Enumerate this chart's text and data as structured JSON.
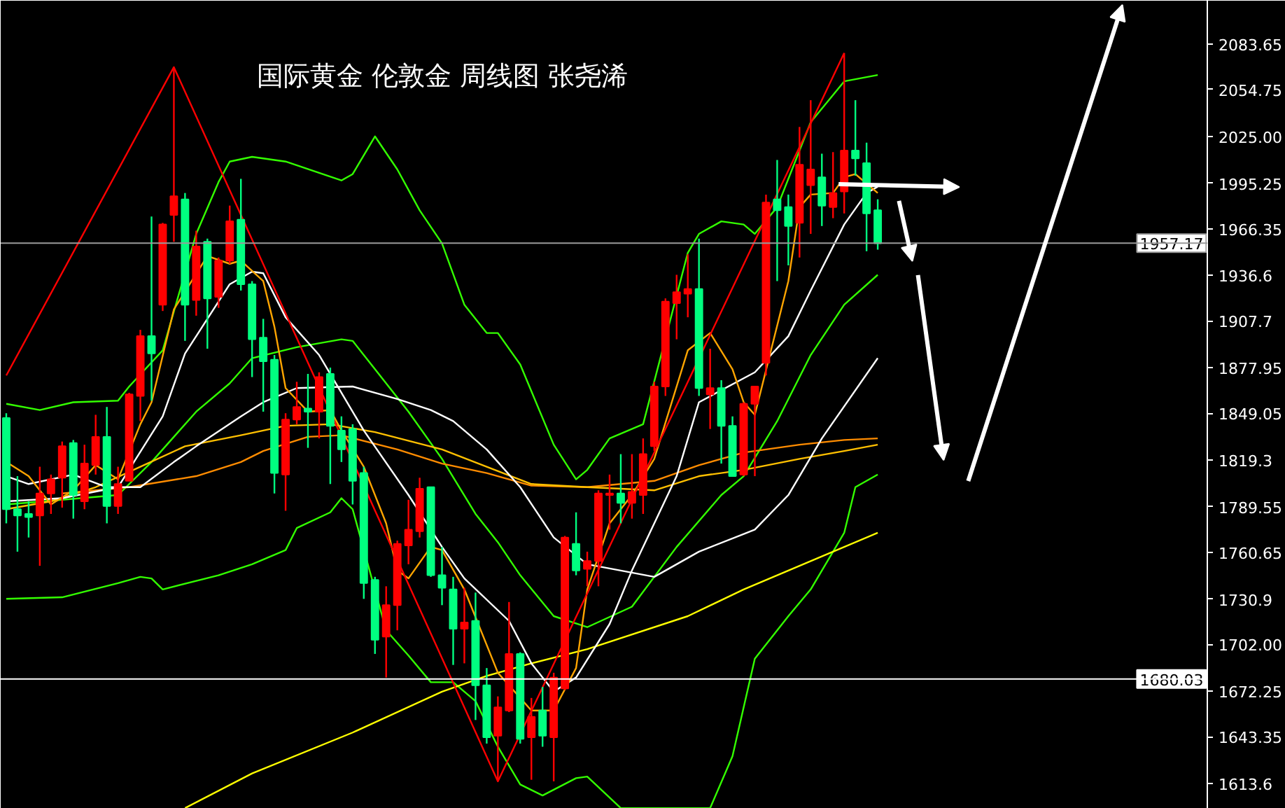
{
  "chart_data": {
    "type": "candlestick",
    "title": "国际黄金 伦敦金 周线图 张尧浠",
    "categories": [
      null,
      null,
      null,
      null,
      null,
      null,
      null,
      null,
      null,
      null,
      null,
      null,
      null,
      null,
      null,
      null,
      null,
      null,
      null,
      null,
      null,
      null,
      null,
      null,
      null,
      null,
      null,
      null,
      null,
      null,
      null,
      null,
      null,
      null,
      null,
      null,
      null,
      null,
      null,
      null,
      null,
      null,
      null,
      null,
      null,
      null,
      null,
      null,
      null,
      null,
      null,
      null,
      null,
      null,
      null,
      null,
      null,
      null,
      null,
      null,
      null,
      null,
      null,
      null,
      null,
      null,
      null,
      null,
      null,
      null,
      null,
      null,
      null,
      null,
      null,
      null,
      null,
      null,
      null,
      null,
      null,
      null,
      null,
      null,
      null,
      null,
      null,
      null,
      null,
      null,
      null,
      null,
      null,
      null,
      null,
      null,
      null,
      null,
      null,
      null,
      null,
      null,
      null,
      null,
      null,
      null,
      null,
      null
    ],
    "ohlc": [
      [
        1846,
        1849,
        1779,
        1788
      ],
      [
        1788,
        1809,
        1761,
        1784
      ],
      [
        1785,
        1793,
        1770,
        1783
      ],
      [
        1784,
        1815,
        1752,
        1798
      ],
      [
        1798,
        1810,
        1785,
        1807
      ],
      [
        1808,
        1831,
        1789,
        1828
      ],
      [
        1830,
        1832,
        1782,
        1797
      ],
      [
        1793,
        1829,
        1788,
        1817
      ],
      [
        1816,
        1848,
        1810,
        1834
      ],
      [
        1834,
        1853,
        1779,
        1790
      ],
      [
        1790,
        1815,
        1785,
        1804
      ],
      [
        1806,
        1862,
        1806,
        1861
      ],
      [
        1860,
        1902,
        1844,
        1898
      ],
      [
        1898,
        1974,
        1857,
        1887
      ],
      [
        1918,
        1970,
        1914,
        1969
      ],
      [
        1975,
        2069,
        1958,
        1987
      ],
      [
        1985,
        1989,
        1895,
        1918
      ],
      [
        1921,
        1965,
        1911,
        1955
      ],
      [
        1958,
        1960,
        1890,
        1922
      ],
      [
        1923,
        1948,
        1916,
        1946
      ],
      [
        1946,
        1981,
        1944,
        1971
      ],
      [
        1972,
        1998,
        1927,
        1931
      ],
      [
        1931,
        1933,
        1872,
        1896
      ],
      [
        1897,
        1909,
        1850,
        1882
      ],
      [
        1883,
        1886,
        1798,
        1811
      ],
      [
        1810,
        1849,
        1787,
        1845
      ],
      [
        1845,
        1869,
        1842,
        1853
      ],
      [
        1852,
        1874,
        1827,
        1850
      ],
      [
        1850,
        1875,
        1833,
        1872
      ],
      [
        1874,
        1878,
        1804,
        1841
      ],
      [
        1838,
        1847,
        1818,
        1826
      ],
      [
        1839,
        1842,
        1791,
        1806
      ],
      [
        1811,
        1815,
        1731,
        1741
      ],
      [
        1743,
        1745,
        1696,
        1705
      ],
      [
        1707,
        1739,
        1681,
        1727
      ],
      [
        1727,
        1768,
        1711,
        1766
      ],
      [
        1765,
        1794,
        1753,
        1775
      ],
      [
        1774,
        1808,
        1770,
        1801
      ],
      [
        1802,
        1802,
        1745,
        1746
      ],
      [
        1746,
        1764,
        1727,
        1738
      ],
      [
        1737,
        1745,
        1689,
        1712
      ],
      [
        1712,
        1738,
        1690,
        1716
      ],
      [
        1717,
        1735,
        1654,
        1676
      ],
      [
        1676,
        1687,
        1639,
        1643
      ],
      [
        1644,
        1669,
        1615,
        1662
      ],
      [
        1660,
        1729,
        1659,
        1696
      ],
      [
        1696,
        1697,
        1639,
        1642
      ],
      [
        1643,
        1668,
        1616,
        1656
      ],
      [
        1660,
        1675,
        1637,
        1644
      ],
      [
        1643,
        1684,
        1615,
        1681
      ],
      [
        1674,
        1771,
        1673,
        1770
      ],
      [
        1766,
        1786,
        1746,
        1749
      ],
      [
        1750,
        1761,
        1739,
        1755
      ],
      [
        1755,
        1800,
        1739,
        1798
      ],
      [
        1797,
        1810,
        1775,
        1798
      ],
      [
        1798,
        1823,
        1779,
        1792
      ],
      [
        1792,
        1823,
        1782,
        1799
      ],
      [
        1797,
        1833,
        1785,
        1823
      ],
      [
        1828,
        1869,
        1825,
        1866
      ],
      [
        1866,
        1922,
        1860,
        1920
      ],
      [
        1919,
        1937,
        1896,
        1926
      ],
      [
        1925,
        1950,
        1910,
        1928
      ],
      [
        1928,
        1960,
        1860,
        1865
      ],
      [
        1861,
        1890,
        1839,
        1865
      ],
      [
        1865,
        1870,
        1817,
        1841
      ],
      [
        1841,
        1847,
        1809,
        1809
      ],
      [
        1810,
        1856,
        1809,
        1855
      ],
      [
        1855,
        1866,
        1809,
        1866
      ],
      [
        1881,
        1988,
        1873,
        1983
      ],
      [
        1985,
        2010,
        1933,
        1978
      ],
      [
        1980,
        1988,
        1943,
        1968
      ],
      [
        1970,
        2031,
        1948,
        2007
      ],
      [
        1994,
        2048,
        1963,
        2004
      ],
      [
        1999,
        2014,
        1968,
        1981
      ],
      [
        1980,
        2015,
        1973,
        1989
      ],
      [
        1990,
        2078,
        1976,
        2016
      ],
      [
        2016,
        2048,
        2000,
        2011
      ],
      [
        2008,
        2021,
        1952,
        1976
      ],
      [
        1978,
        1985,
        1953,
        1957
      ],
      null,
      null,
      null,
      null,
      null,
      null,
      null,
      null,
      null,
      null,
      null,
      null,
      null,
      null,
      null,
      null,
      null,
      null,
      null,
      null,
      null,
      null,
      null,
      null,
      null,
      null,
      null,
      null,
      null
    ],
    "colors": [
      "#00ff80",
      "#00ff80",
      "#00ff80",
      "#ff0000",
      "#ff0000",
      "#ff0000",
      "#00ff80",
      "#ff0000",
      "#ff0000",
      "#00ff80",
      "#ff0000",
      "#ff0000",
      "#ff0000",
      "#00ff80",
      "#ff0000",
      "#ff0000",
      "#00ff80",
      "#ff0000",
      "#00ff80",
      "#ff0000",
      "#ff0000",
      "#00ff80",
      "#00ff80",
      "#00ff80",
      "#00ff80",
      "#ff0000",
      "#ff0000",
      "#00ff80",
      "#ff0000",
      "#00ff80",
      "#00ff80",
      "#00ff80",
      "#00ff80",
      "#00ff80",
      "#ff0000",
      "#ff0000",
      "#ff0000",
      "#ff0000",
      "#00ff80",
      "#00ff80",
      "#00ff80",
      "#ff0000",
      "#00ff80",
      "#00ff80",
      "#ff0000",
      "#ff0000",
      "#00ff80",
      "#ff0000",
      "#00ff80",
      "#ff0000",
      "#ff0000",
      "#00ff80",
      "#ff0000",
      "#ff0000",
      "#ff0000",
      "#00ff80",
      "#ff0000",
      "#ff0000",
      "#ff0000",
      "#ff0000",
      "#ff0000",
      "#ff0000",
      "#00ff80",
      "#ff0000",
      "#00ff80",
      "#00ff80",
      "#ff0000",
      "#ff0000",
      "#ff0000",
      "#00ff80",
      "#00ff80",
      "#ff0000",
      "#ff0000",
      "#00ff80",
      "#ff0000",
      "#ff0000",
      "#00ff80",
      "#00ff80",
      "#00ff80",
      null,
      null,
      null,
      null,
      null,
      null,
      null,
      null,
      null,
      null,
      null,
      null,
      null,
      null,
      null,
      null,
      null,
      null,
      null,
      null,
      null,
      null,
      null,
      null,
      null,
      null,
      null,
      null,
      null
    ],
    "series": [
      {
        "type": "line",
        "color": "#33ff00",
        "values": [
          1855,
          null,
          null,
          1851,
          null,
          null,
          1856,
          null,
          null,
          null,
          1857,
          1866,
          null,
          null,
          1889,
          null,
          null,
          1963,
          null,
          1996,
          2009,
          null,
          2012,
          null,
          null,
          2009,
          null,
          null,
          null,
          null,
          1997,
          2001,
          null,
          2025,
          null,
          2004,
          null,
          1978,
          null,
          1957,
          null,
          1918,
          null,
          1900,
          1900,
          null,
          1880,
          null,
          null,
          1829,
          null,
          1807,
          1813,
          null,
          1833,
          null,
          null,
          1842,
          null,
          null,
          null,
          1951,
          1963,
          null,
          1971,
          null,
          1969,
          1963,
          null,
          1980,
          null,
          null,
          2034,
          null,
          null,
          2060,
          null,
          null,
          2064,
          null,
          null,
          null,
          null,
          null,
          null,
          null,
          null,
          null,
          null,
          null,
          null,
          null,
          null,
          null,
          null,
          null,
          null,
          null,
          null,
          null,
          null,
          null,
          null,
          null,
          null,
          null,
          null,
          null
        ]
      },
      {
        "type": "line",
        "color": "#33ff00",
        "values": [
          1791,
          null,
          null,
          null,
          null,
          null,
          null,
          null,
          null,
          null,
          1797,
          null,
          null,
          1818,
          null,
          null,
          null,
          1850,
          null,
          null,
          1868,
          null,
          1884,
          null,
          null,
          null,
          1891,
          null,
          null,
          null,
          1896,
          1895,
          null,
          1877,
          null,
          null,
          1850,
          null,
          null,
          1820,
          null,
          null,
          1785,
          null,
          1767,
          null,
          1746,
          null,
          null,
          1720,
          null,
          null,
          1713,
          null,
          null,
          null,
          1726,
          null,
          null,
          null,
          1764,
          null,
          null,
          null,
          1797,
          null,
          1809,
          null,
          null,
          1844,
          null,
          null,
          1886,
          null,
          null,
          1918,
          null,
          null,
          1937,
          null,
          null,
          null,
          null,
          null,
          null,
          null,
          null,
          null,
          null,
          null,
          null,
          null,
          null,
          null,
          null,
          null,
          null,
          null,
          null,
          null,
          null,
          null,
          null,
          null,
          null,
          null,
          null,
          null
        ]
      },
      {
        "type": "line",
        "color": "#33ff00",
        "values": [
          1731,
          null,
          null,
          null,
          null,
          1732,
          null,
          null,
          null,
          null,
          1741,
          null,
          1745,
          1744,
          1737,
          null,
          null,
          null,
          null,
          1746,
          null,
          null,
          1753,
          null,
          null,
          1762,
          1776,
          null,
          null,
          1786,
          1795,
          1788,
          null,
          null,
          1711,
          null,
          1695,
          null,
          1678,
          null,
          1678,
          null,
          1666,
          null,
          1637,
          null,
          1613,
          null,
          1606,
          null,
          null,
          1617,
          1618,
          null,
          null,
          1598,
          null,
          null,
          null,
          null,
          null,
          null,
          null,
          1598,
          null,
          1631,
          null,
          1693,
          null,
          null,
          1720,
          null,
          1737,
          null,
          null,
          1773,
          1802,
          null,
          1810,
          null,
          null,
          null,
          null,
          null,
          null,
          null,
          null,
          null,
          null,
          null,
          null,
          null,
          null,
          null,
          null,
          null,
          null,
          null,
          null,
          null,
          null,
          null,
          null,
          null,
          null,
          null,
          null,
          null
        ]
      },
      {
        "type": "line",
        "color": "#ffff00",
        "values": [
          null,
          null,
          null,
          null,
          null,
          null,
          null,
          null,
          null,
          null,
          null,
          null,
          null,
          null,
          null,
          null,
          1598,
          null,
          null,
          null,
          null,
          null,
          1620,
          null,
          null,
          null,
          null,
          null,
          null,
          null,
          null,
          1646,
          null,
          null,
          null,
          null,
          null,
          null,
          null,
          1672,
          null,
          null,
          null,
          1682,
          null,
          null,
          null,
          1690,
          null,
          null,
          null,
          null,
          1699,
          null,
          null,
          null,
          null,
          null,
          null,
          null,
          null,
          1720,
          null,
          null,
          null,
          null,
          1737,
          null,
          null,
          null,
          null,
          null,
          null,
          1758,
          null,
          null,
          null,
          null,
          1773,
          null,
          null,
          null,
          null,
          null,
          null,
          null,
          null,
          null,
          null,
          null,
          null,
          null,
          null,
          null,
          null,
          null,
          null,
          null,
          null,
          null,
          null,
          null,
          null,
          null,
          null,
          null,
          null,
          null
        ]
      },
      {
        "type": "line",
        "color": "#ff8c00",
        "values": [
          null,
          null,
          null,
          null,
          null,
          1798,
          null,
          null,
          null,
          null,
          null,
          1802,
          null,
          null,
          null,
          null,
          null,
          1809,
          null,
          null,
          null,
          1818,
          null,
          1825,
          null,
          null,
          null,
          1834,
          null,
          null,
          1835,
          null,
          null,
          null,
          null,
          1826,
          null,
          null,
          null,
          1817,
          null,
          null,
          null,
          1811,
          null,
          null,
          null,
          1803,
          null,
          null,
          null,
          null,
          1802,
          null,
          null,
          null,
          null,
          null,
          1806,
          null,
          null,
          null,
          1816,
          null,
          null,
          null,
          1824,
          null,
          null,
          null,
          null,
          1829,
          null,
          null,
          null,
          1832,
          null,
          null,
          1833,
          null,
          null,
          null,
          null,
          null,
          null,
          null,
          null,
          null,
          null,
          null,
          null,
          null,
          null,
          null,
          null,
          null,
          null,
          null,
          null,
          null,
          null,
          null,
          null,
          null,
          null,
          null,
          null,
          null
        ]
      },
      {
        "type": "line",
        "color": "#ffc000",
        "values": [
          1788,
          null,
          null,
          null,
          1793,
          null,
          null,
          null,
          1802,
          null,
          null,
          null,
          1815,
          null,
          null,
          null,
          1828,
          null,
          null,
          null,
          null,
          1835,
          null,
          null,
          null,
          1841,
          null,
          null,
          null,
          1842,
          null,
          null,
          null,
          1837,
          null,
          null,
          null,
          null,
          null,
          1826,
          null,
          null,
          null,
          1815,
          null,
          null,
          null,
          1804,
          null,
          null,
          null,
          null,
          1802,
          null,
          null,
          null,
          null,
          null,
          1800,
          null,
          null,
          null,
          1809,
          null,
          null,
          null,
          1813,
          null,
          null,
          null,
          null,
          1820,
          null,
          null,
          null,
          1825,
          null,
          null,
          1829,
          null,
          null,
          null,
          null,
          null,
          null,
          null,
          null,
          null,
          null,
          null,
          null,
          null,
          null,
          null,
          null,
          null,
          null,
          null,
          null,
          null,
          null,
          null,
          null,
          null,
          null,
          null,
          null,
          null
        ]
      },
      {
        "type": "line",
        "color": "#ffffff",
        "values": [
          1809,
          null,
          1804,
          null,
          null,
          null,
          1810,
          null,
          null,
          1802,
          null,
          null,
          1802,
          null,
          null,
          1818,
          null,
          1828,
          null,
          null,
          null,
          1847,
          null,
          1856,
          null,
          null,
          1865,
          null,
          null,
          null,
          null,
          1866,
          null,
          null,
          null,
          1858,
          null,
          null,
          1851,
          null,
          1844,
          null,
          null,
          1826,
          null,
          null,
          1802,
          null,
          null,
          1770,
          null,
          null,
          1753,
          null,
          null,
          null,
          null,
          null,
          1745,
          null,
          null,
          null,
          1761,
          null,
          null,
          null,
          null,
          1775,
          null,
          null,
          1797,
          null,
          null,
          1833,
          null,
          null,
          null,
          null,
          1884,
          null,
          null,
          null,
          null,
          null,
          null,
          null,
          null,
          null,
          null,
          null,
          null,
          null,
          null,
          null,
          null,
          null,
          null,
          null,
          null,
          null,
          null,
          null,
          null,
          null,
          null,
          null,
          null,
          null
        ]
      },
      {
        "type": "line",
        "color": "#ffffff",
        "values": [
          1793,
          null,
          null,
          null,
          null,
          1795,
          null,
          null,
          null,
          null,
          1802,
          null,
          null,
          null,
          1847,
          null,
          1887,
          null,
          null,
          null,
          1931,
          null,
          1939,
          1938,
          null,
          1910,
          null,
          null,
          1886,
          null,
          null,
          null,
          1838,
          null,
          null,
          null,
          1797,
          null,
          null,
          1764,
          null,
          1744,
          null,
          null,
          null,
          1717,
          null,
          1690,
          null,
          1672,
          null,
          1681,
          null,
          null,
          1715,
          null,
          1749,
          null,
          null,
          null,
          1809,
          null,
          1856,
          null,
          null,
          null,
          null,
          1875,
          null,
          null,
          1898,
          null,
          1927,
          null,
          null,
          1969,
          null,
          1989,
          1993,
          null,
          null,
          null,
          null,
          null,
          null,
          null,
          null,
          null,
          null,
          null,
          null,
          null,
          null,
          null,
          null,
          null,
          null,
          null,
          null,
          null,
          null,
          null,
          null,
          null,
          null,
          null,
          null,
          null
        ]
      },
      {
        "type": "line",
        "color": "#ffa500",
        "values": [
          1818,
          null,
          1809,
          null,
          1791,
          null,
          1800,
          null,
          1816,
          null,
          1807,
          null,
          1842,
          1856,
          null,
          1915,
          null,
          null,
          1949,
          null,
          1944,
          1946,
          null,
          1933,
          1904,
          1865,
          null,
          1850,
          null,
          1851,
          1838,
          null,
          1815,
          null,
          1779,
          1749,
          1744,
          null,
          1764,
          1762,
          null,
          1737,
          null,
          null,
          1684,
          null,
          null,
          1660,
          null,
          1660,
          null,
          1687,
          1737,
          null,
          1779,
          null,
          1797,
          null,
          1820,
          null,
          null,
          1889,
          null,
          1900,
          null,
          1877,
          1856,
          1848,
          null,
          null,
          1933,
          1980,
          1988,
          null,
          1989,
          1999,
          2001,
          null,
          1989,
          null,
          null,
          null,
          null,
          null,
          null,
          null,
          null,
          null,
          null,
          null,
          null,
          null,
          null,
          null,
          null,
          null,
          null,
          null,
          null,
          null,
          null,
          null,
          null,
          null,
          null,
          null,
          null,
          null
        ]
      },
      {
        "type": "line",
        "color": "#ff0000",
        "values": [
          1873,
          null,
          null,
          null,
          null,
          null,
          null,
          null,
          null,
          null,
          null,
          null,
          null,
          null,
          null,
          2069,
          null,
          null,
          null,
          null,
          null,
          null,
          null,
          null,
          null,
          null,
          null,
          null,
          null,
          null,
          null,
          null,
          null,
          null,
          null,
          null,
          null,
          null,
          null,
          null,
          null,
          null,
          null,
          null,
          1615,
          null,
          null,
          null,
          null,
          null,
          null,
          null,
          null,
          null,
          null,
          null,
          null,
          null,
          null,
          null,
          null,
          null,
          null,
          null,
          null,
          null,
          null,
          null,
          null,
          null,
          null,
          null,
          null,
          null,
          null,
          2078,
          null,
          null,
          null,
          null,
          null,
          null,
          null,
          null,
          null,
          null,
          null,
          null,
          null,
          null,
          null,
          null,
          null,
          null,
          null,
          null,
          null,
          null,
          null,
          null,
          null,
          null,
          null,
          null,
          null,
          null,
          null,
          null
        ]
      }
    ],
    "ylim": [
      1597.6,
      2111.25
    ],
    "yticks": [
      2083.65,
      2054.75,
      {
        "value": 2025,
        "label": "2025.00"
      },
      1995.25,
      1966.35,
      1936.6,
      1907.7,
      1877.95,
      1849.05,
      1819.3,
      1789.55,
      1760.65,
      1730.9,
      {
        "value": 1702,
        "label": "1702.00"
      },
      1672.25,
      1643.35,
      1613.6
    ],
    "tick_labels": "y",
    "ref_lines": [
      {
        "axis": "y",
        "value": 1957.17,
        "label": "1957.17",
        "color": "#9a9a9a"
      },
      {
        "axis": "y",
        "value": 1680.03,
        "label": "1680.03",
        "color": "#ffffff"
      }
    ]
  }
}
